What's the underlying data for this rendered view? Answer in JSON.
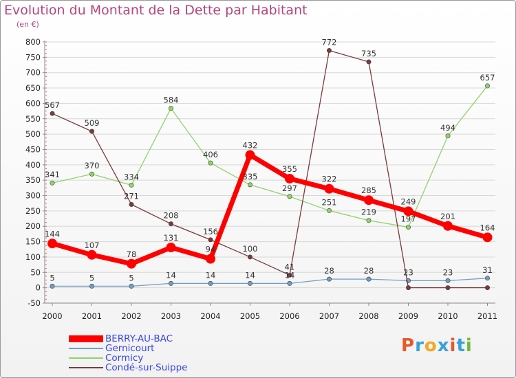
{
  "title": "Evolution du Montant de la Dette par Habitant",
  "subtitle": "(en €)",
  "logo": {
    "text": "Proxiti",
    "colors": [
      "#e8572a",
      "#3aa0d8",
      "#f4a823",
      "#3aa0d8",
      "#e8572a",
      "#3aa0d8",
      "#74b83a"
    ]
  },
  "chart_data": {
    "type": "line",
    "x": [
      "2000",
      "2001",
      "2002",
      "2003",
      "2004",
      "2005",
      "2006",
      "2007",
      "2008",
      "2009",
      "2010",
      "2011"
    ],
    "ylim": [
      -50,
      800
    ],
    "yticks": [
      -50,
      0,
      50,
      100,
      150,
      200,
      250,
      300,
      350,
      400,
      450,
      500,
      550,
      600,
      650,
      700,
      750,
      800
    ],
    "grid": "horizontal",
    "legend_position": "bottom-left",
    "series": [
      {
        "name": "BERRY-AU-BAC",
        "color": "#ff0000",
        "width": 7,
        "marker": 7,
        "values": [
          144,
          107,
          78,
          131,
          94,
          432,
          355,
          322,
          285,
          249,
          201,
          164
        ],
        "labels": [
          "144",
          "107",
          "78",
          "131",
          "94",
          "432",
          "355",
          "322",
          "285",
          "249",
          "201",
          "164"
        ]
      },
      {
        "name": "Gernicourt",
        "color": "#6f9ec4",
        "width": 1.3,
        "marker": 3.2,
        "values": [
          5,
          5,
          5,
          14,
          14,
          14,
          14,
          28,
          28,
          23,
          23,
          31
        ],
        "labels": [
          "5",
          "5",
          "5",
          "14",
          "14",
          "14",
          "14",
          "28",
          "28",
          "23",
          "23",
          "31"
        ]
      },
      {
        "name": "Cormicy",
        "color": "#8fd36a",
        "width": 1.3,
        "marker": 3.2,
        "values": [
          341,
          370,
          334,
          584,
          406,
          335,
          297,
          251,
          219,
          197,
          494,
          657
        ],
        "labels": [
          "341",
          "370",
          "334",
          "584",
          "406",
          "335",
          "297",
          "251",
          "219",
          "197",
          "494",
          "657"
        ]
      },
      {
        "name": "Condé-sur-Suippe",
        "color": "#7a3a3a",
        "width": 1.3,
        "marker": 3.2,
        "values": [
          567,
          509,
          271,
          208,
          156,
          100,
          41,
          772,
          735,
          0,
          0,
          0
        ],
        "labels": [
          "567",
          "509",
          "271",
          "208",
          "156",
          "100",
          "41",
          "772",
          "735",
          "",
          "",
          ""
        ]
      }
    ]
  }
}
